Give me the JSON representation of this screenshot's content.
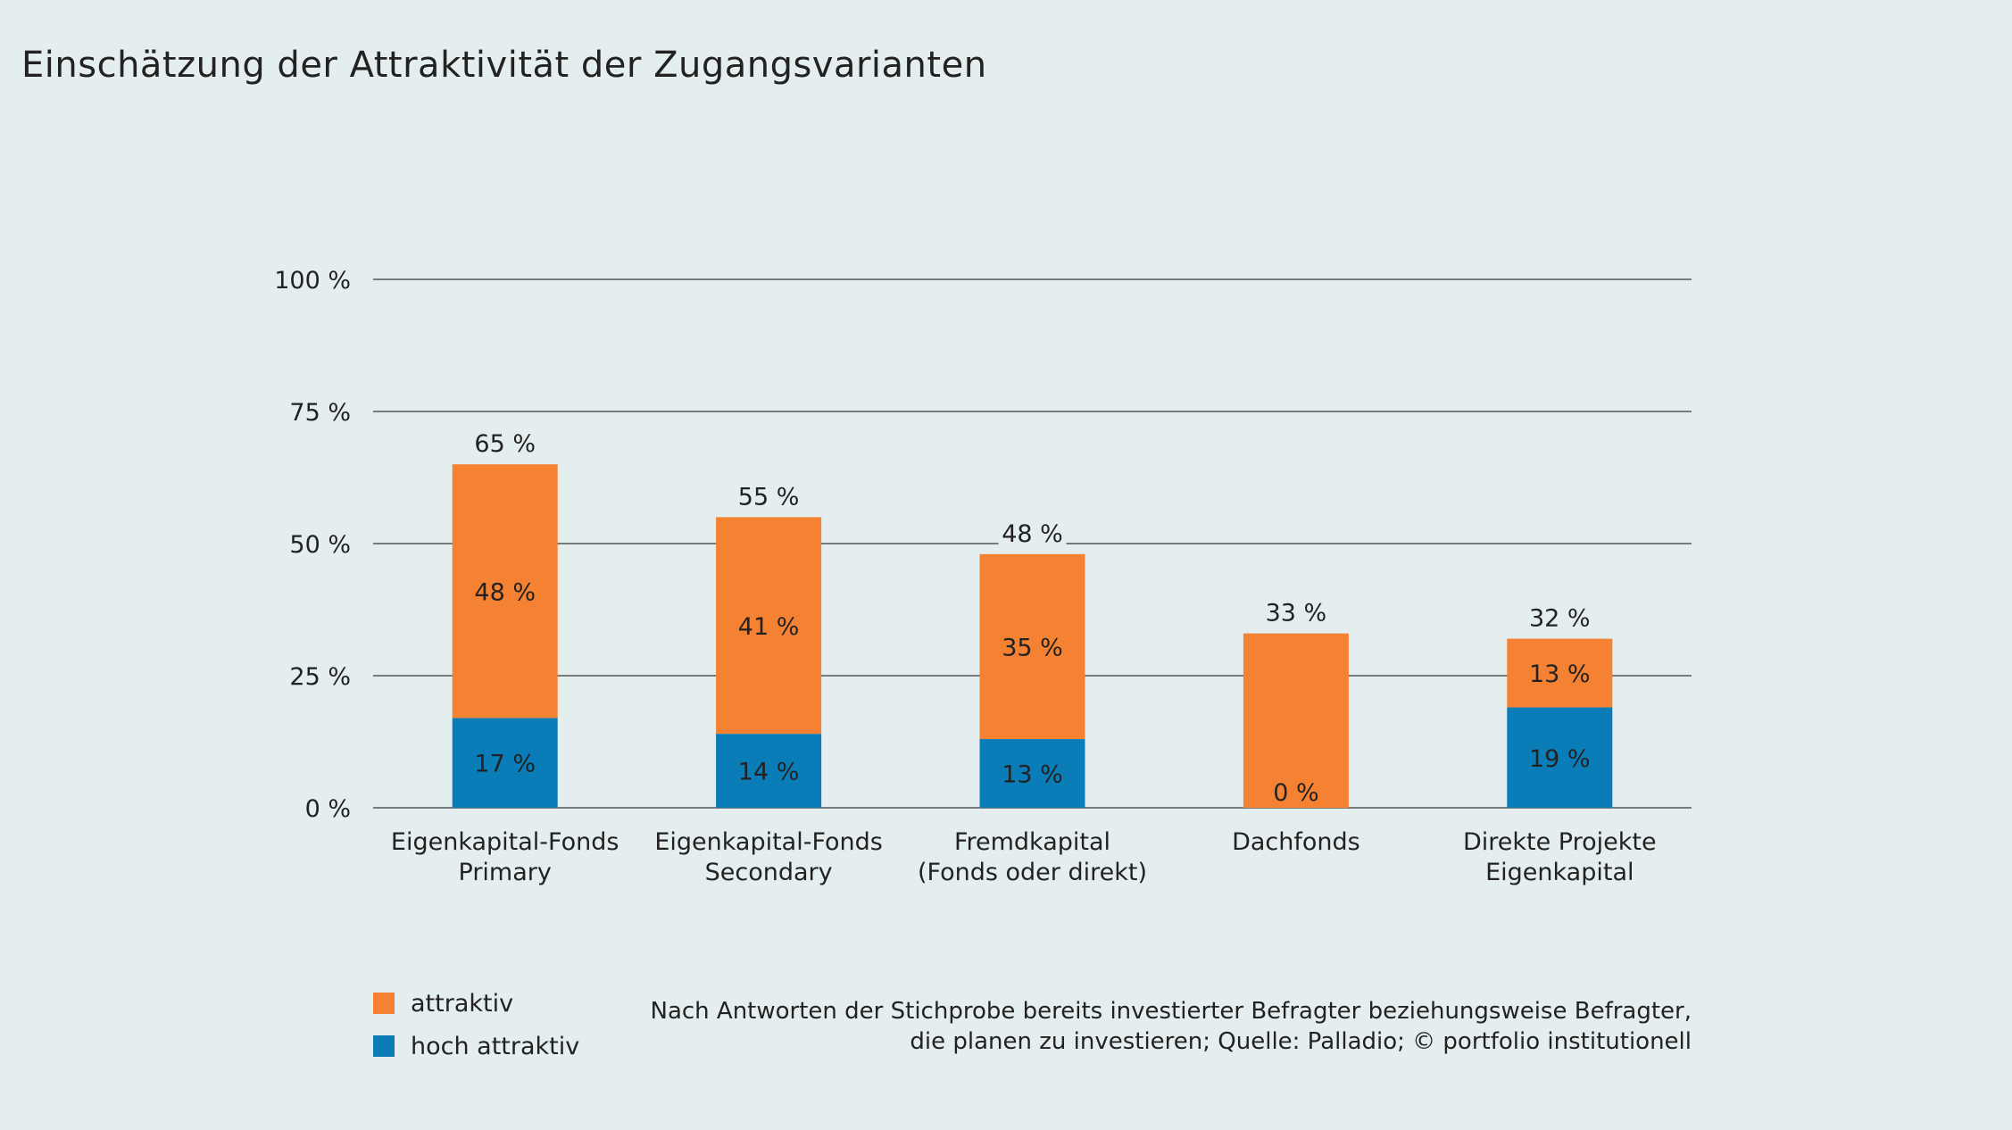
{
  "chart_data": {
    "type": "bar",
    "stacked": true,
    "title": "Einschätzung der Attraktivität der Zugangsvarianten",
    "categories": [
      [
        "Eigenkapital-Fonds",
        "Primary"
      ],
      [
        "Eigenkapital-Fonds",
        "Secondary"
      ],
      [
        "Fremdkapital",
        "(Fonds oder direkt)"
      ],
      [
        "Dachfonds"
      ],
      [
        "Direkte Projekte",
        "Eigenkapital"
      ]
    ],
    "series": [
      {
        "name": "hoch attraktiv",
        "color": "#0a7db8",
        "values": [
          17,
          14,
          13,
          0,
          19
        ],
        "labels": [
          "17 %",
          "14 %",
          "13 %",
          "0 %",
          "19 %"
        ]
      },
      {
        "name": "attraktiv",
        "color": "#f58233",
        "values": [
          48,
          41,
          35,
          33,
          13
        ],
        "labels": [
          "48 %",
          "41 %",
          "35 %",
          "",
          "13 %"
        ]
      }
    ],
    "totals": [
      65,
      55,
      48,
      33,
      32
    ],
    "total_labels": [
      "65 %",
      "55 %",
      "48 %",
      "33 %",
      "32 %"
    ],
    "yticks": [
      0,
      25,
      50,
      75,
      100
    ],
    "ytick_labels": [
      "0 %",
      "25 %",
      "50 %",
      "75 %",
      "100 %"
    ],
    "ylim": [
      0,
      100
    ],
    "grid": true,
    "legend_position": "bottom-left"
  },
  "legend": [
    {
      "label": "attraktiv",
      "color": "#f58233"
    },
    {
      "label": "hoch attraktiv",
      "color": "#0a7db8"
    }
  ],
  "footnote": {
    "line1": "Nach Antworten der Stichprobe bereits investierter Befragter beziehungsweise Befragter,",
    "line2": "die planen zu investieren; Quelle: Palladio; © portfolio institutionell"
  },
  "colors": {
    "background": "#e5eeee",
    "orange": "#f58233",
    "blue": "#0a7db8"
  }
}
